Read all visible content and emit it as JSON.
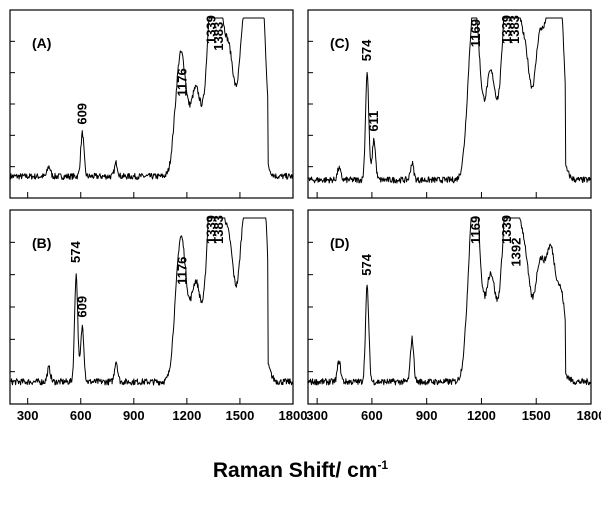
{
  "x_axis_label": "Raman Shift/ cm",
  "x_axis_label_superscript": "-1",
  "chart_data": [
    {
      "type": "line",
      "panel": "(A)",
      "xlim": [
        200,
        1800
      ],
      "xticks": [
        300,
        600,
        900,
        1200,
        1500,
        1800
      ],
      "show_tick_labels": false,
      "baseline": 0.1,
      "peaks": [
        {
          "x": 420,
          "y": 0.16
        },
        {
          "x": 609,
          "y": 0.36,
          "label": "609"
        },
        {
          "x": 800,
          "y": 0.18
        },
        {
          "x": 1150,
          "y": 0.42
        },
        {
          "x": 1176,
          "y": 0.52,
          "label": "1176"
        },
        {
          "x": 1250,
          "y": 0.45
        },
        {
          "x": 1339,
          "y": 0.9,
          "label": "1339"
        },
        {
          "x": 1383,
          "y": 0.78,
          "label": "1383"
        },
        {
          "x": 1440,
          "y": 0.6
        },
        {
          "x": 1520,
          "y": 0.72
        },
        {
          "x": 1560,
          "y": 0.66
        },
        {
          "x": 1604,
          "y": 0.97
        },
        {
          "x": 1635,
          "y": 0.62
        }
      ]
    },
    {
      "type": "line",
      "panel": "(B)",
      "xlim": [
        200,
        1800
      ],
      "xticks": [
        300,
        600,
        900,
        1200,
        1500,
        1800
      ],
      "show_tick_labels": true,
      "baseline": 0.1,
      "peaks": [
        {
          "x": 420,
          "y": 0.18
        },
        {
          "x": 574,
          "y": 0.72,
          "label": "574"
        },
        {
          "x": 609,
          "y": 0.42,
          "label": "609"
        },
        {
          "x": 800,
          "y": 0.22
        },
        {
          "x": 1150,
          "y": 0.45
        },
        {
          "x": 1176,
          "y": 0.6,
          "label": "1176"
        },
        {
          "x": 1250,
          "y": 0.5
        },
        {
          "x": 1339,
          "y": 0.97,
          "label": "1339"
        },
        {
          "x": 1383,
          "y": 0.88,
          "label": "1383"
        },
        {
          "x": 1440,
          "y": 0.65
        },
        {
          "x": 1520,
          "y": 0.72
        },
        {
          "x": 1560,
          "y": 0.7
        },
        {
          "x": 1604,
          "y": 0.95
        },
        {
          "x": 1640,
          "y": 0.85
        }
      ]
    },
    {
      "type": "line",
      "panel": "(C)",
      "xlim": [
        250,
        1800
      ],
      "xticks": [
        300,
        600,
        900,
        1200,
        1500,
        1800
      ],
      "show_tick_labels": false,
      "baseline": 0.08,
      "peaks": [
        {
          "x": 420,
          "y": 0.15
        },
        {
          "x": 574,
          "y": 0.72,
          "label": "574"
        },
        {
          "x": 611,
          "y": 0.32,
          "label": "611"
        },
        {
          "x": 820,
          "y": 0.18
        },
        {
          "x": 1140,
          "y": 0.5
        },
        {
          "x": 1169,
          "y": 0.8,
          "label": "1169"
        },
        {
          "x": 1250,
          "y": 0.55
        },
        {
          "x": 1339,
          "y": 0.95,
          "label": "1339"
        },
        {
          "x": 1383,
          "y": 0.92,
          "label": "1383"
        },
        {
          "x": 1440,
          "y": 0.6
        },
        {
          "x": 1520,
          "y": 0.75
        },
        {
          "x": 1580,
          "y": 0.82
        },
        {
          "x": 1604,
          "y": 0.9
        },
        {
          "x": 1640,
          "y": 0.72
        }
      ]
    },
    {
      "type": "line",
      "panel": "(D)",
      "xlim": [
        250,
        1800
      ],
      "xticks": [
        300,
        600,
        900,
        1200,
        1500,
        1800
      ],
      "show_tick_labels": true,
      "baseline": 0.1,
      "peaks": [
        {
          "x": 420,
          "y": 0.22
        },
        {
          "x": 574,
          "y": 0.65,
          "label": "574"
        },
        {
          "x": 820,
          "y": 0.35
        },
        {
          "x": 1140,
          "y": 0.5
        },
        {
          "x": 1169,
          "y": 0.93,
          "label": "1169"
        },
        {
          "x": 1250,
          "y": 0.55
        },
        {
          "x": 1339,
          "y": 0.92,
          "label": "1339"
        },
        {
          "x": 1392,
          "y": 0.7,
          "label": "1392"
        },
        {
          "x": 1440,
          "y": 0.55
        },
        {
          "x": 1520,
          "y": 0.6
        },
        {
          "x": 1580,
          "y": 0.72
        },
        {
          "x": 1640,
          "y": 0.55
        }
      ]
    }
  ]
}
